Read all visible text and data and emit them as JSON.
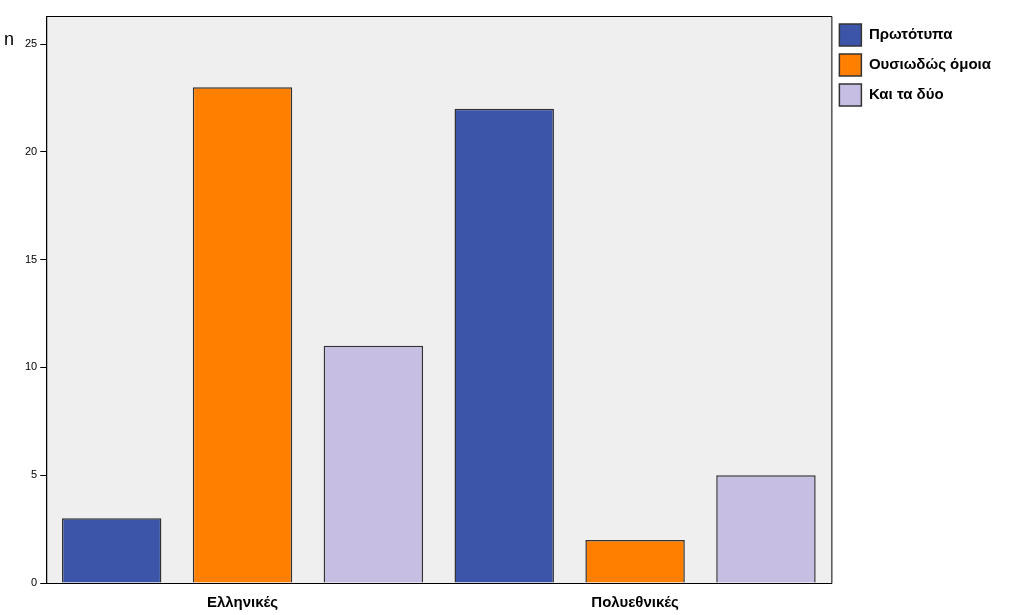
{
  "chart_data": {
    "type": "bar",
    "ylabel": "n",
    "categories": [
      "Ελληνικές",
      "Πολυεθνικές"
    ],
    "series": [
      {
        "name": "Πρωτότυπα",
        "color": "#3d55a8",
        "values": [
          3,
          22
        ]
      },
      {
        "name": "Ουσιωδώς όμοια",
        "color": "#ff8000",
        "values": [
          23,
          2
        ]
      },
      {
        "name": "Και τα δύο",
        "color": "#c6bfe3",
        "values": [
          11,
          5
        ]
      }
    ],
    "ylim": [
      0,
      26.3
    ],
    "yticks": [
      0,
      5,
      10,
      15,
      20,
      25
    ],
    "grid": false,
    "legend": "top right"
  }
}
